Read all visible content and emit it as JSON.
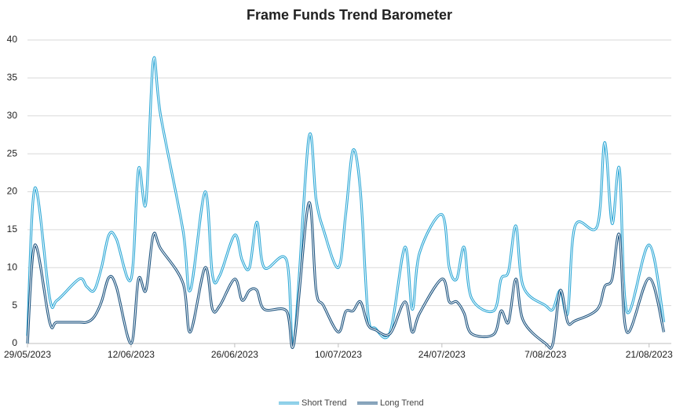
{
  "chart_data": {
    "type": "line",
    "title": "Frame Funds Trend Barometer",
    "x": [
      "29/05/2023",
      "30/05/2023",
      "1/06/2023",
      "2/06/2023",
      "5/06/2023",
      "6/06/2023",
      "7/06/2023",
      "8/06/2023",
      "9/06/2023",
      "10/06/2023",
      "12/06/2023",
      "13/06/2023",
      "14/06/2023",
      "15/06/2023",
      "16/06/2023",
      "19/06/2023",
      "20/06/2023",
      "22/06/2023",
      "23/06/2023",
      "24/06/2023",
      "26/06/2023",
      "27/06/2023",
      "28/06/2023",
      "29/06/2023",
      "30/06/2023",
      "3/07/2023",
      "4/07/2023",
      "6/07/2023",
      "7/07/2023",
      "8/07/2023",
      "10/07/2023",
      "11/07/2023",
      "12/07/2023",
      "13/07/2023",
      "14/07/2023",
      "15/07/2023",
      "17/07/2023",
      "19/07/2023",
      "20/07/2023",
      "21/07/2023",
      "24/07/2023",
      "25/07/2023",
      "26/07/2023",
      "27/07/2023",
      "28/07/2023",
      "31/07/2023",
      "1/08/2023",
      "2/08/2023",
      "3/08/2023",
      "4/08/2023",
      "7/08/2023",
      "8/08/2023",
      "9/08/2023",
      "10/08/2023",
      "11/08/2023",
      "14/08/2023",
      "15/08/2023",
      "16/08/2023",
      "17/08/2023",
      "18/08/2023",
      "21/08/2023",
      "23/08/2023"
    ],
    "series": [
      {
        "name": "Short Trend",
        "color": "#2ea8d6",
        "values": [
          1,
          20.5,
          6,
          5.7,
          8.5,
          7.5,
          7,
          10,
          14.3,
          13.8,
          8.5,
          23,
          18.5,
          37.3,
          30,
          15,
          7,
          20,
          9,
          9,
          14.3,
          11,
          10,
          16,
          10,
          11,
          0,
          27,
          19,
          15,
          10,
          17,
          25.5,
          20,
          4,
          2,
          1.5,
          12.7,
          4.5,
          12,
          17,
          10,
          8.5,
          12.7,
          6,
          4.3,
          8.5,
          9.5,
          15.5,
          7.5,
          5,
          4.5,
          7,
          4,
          15.5,
          15.5,
          26.5,
          15.8,
          23,
          4.2,
          13,
          2.8
        ]
      },
      {
        "name": "Long Trend",
        "color": "#1f5580",
        "values": [
          0,
          13,
          2.8,
          2.8,
          2.8,
          2.8,
          3.5,
          5.5,
          8.7,
          7.5,
          0,
          8.5,
          7,
          14.3,
          12.5,
          8,
          1.5,
          10,
          4.5,
          5,
          8.5,
          5.7,
          7,
          7,
          4.5,
          4.3,
          0,
          18.5,
          7,
          5,
          1.5,
          4.2,
          4.3,
          5.5,
          2.5,
          1.8,
          1.3,
          5.5,
          1.5,
          4,
          8.5,
          5.5,
          5.5,
          4,
          1.3,
          1.2,
          4.3,
          2.8,
          8.5,
          3,
          0,
          0,
          7,
          2.8,
          3,
          4.5,
          7.5,
          8.5,
          14.3,
          1.5,
          8.6,
          1.5
        ]
      }
    ],
    "xlim": [
      "29/05/2023",
      "24/08/2023"
    ],
    "xticks": [
      "29/05/2023",
      "12/06/2023",
      "26/06/2023",
      "10/07/2023",
      "24/07/2023",
      "7/08/2023",
      "21/08/2023"
    ],
    "ylim": [
      0,
      40
    ],
    "yticks": [
      0,
      5,
      10,
      15,
      20,
      25,
      30,
      35,
      40
    ],
    "grid": true,
    "legend": "bottom"
  }
}
